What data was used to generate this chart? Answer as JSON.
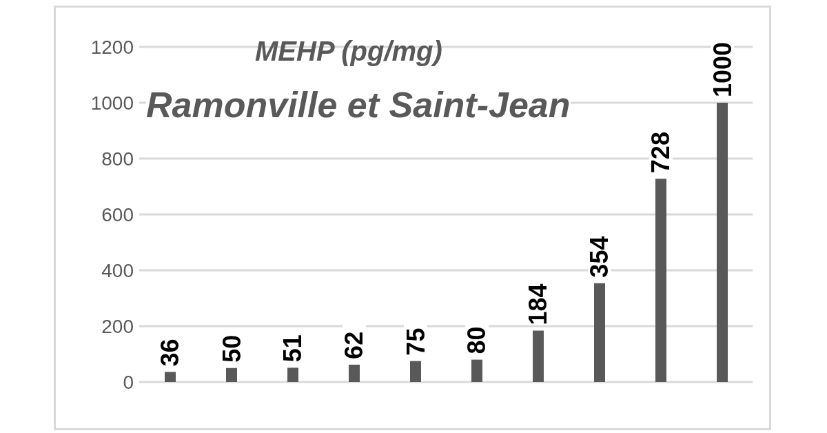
{
  "chart_data": {
    "type": "bar",
    "title": "MEHP (pg/mg)",
    "subtitle": "Ramonville et Saint-Jean",
    "categories": [
      null,
      null,
      null,
      null,
      null,
      null,
      null,
      null,
      null,
      null
    ],
    "values": [
      36,
      50,
      51,
      62,
      75,
      80,
      184,
      354,
      728,
      1000
    ],
    "color": "#595959",
    "ylim": [
      0,
      1200
    ],
    "yticks": [
      0,
      200,
      400,
      600,
      800,
      1000,
      1200
    ],
    "grid": "y",
    "data_labels": true,
    "tick_labels": "y"
  }
}
